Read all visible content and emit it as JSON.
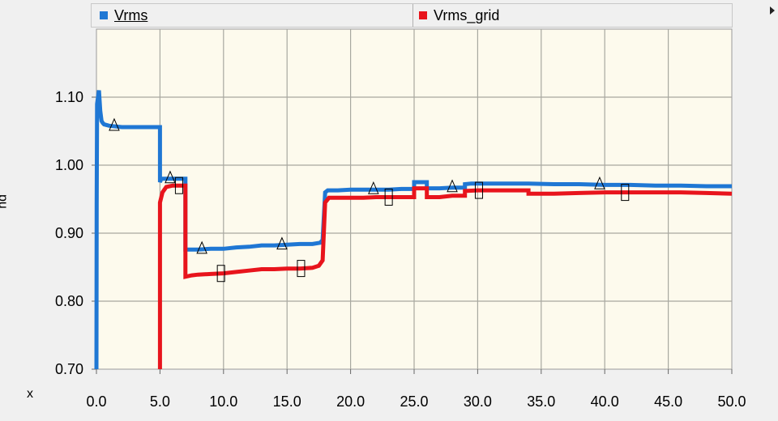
{
  "legend": {
    "items": [
      {
        "label": "Vrms",
        "color": "#1f77d4"
      },
      {
        "label": "Vrms_grid",
        "color": "#e8141c"
      }
    ]
  },
  "axes": {
    "ylabel": "pu",
    "xlabel": "x"
  },
  "chart_data": {
    "type": "line",
    "title": "",
    "xlabel": "x",
    "ylabel": "pu",
    "xlim": [
      0,
      50
    ],
    "ylim": [
      0.7,
      1.2
    ],
    "xticks": [
      0,
      5,
      10,
      15,
      20,
      25,
      30,
      35,
      40,
      45,
      50
    ],
    "xtick_labels": [
      "0.0",
      "5.0",
      "10.0",
      "15.0",
      "20.0",
      "25.0",
      "30.0",
      "35.0",
      "40.0",
      "45.0",
      "50.0"
    ],
    "yticks": [
      0.7,
      0.8,
      0.9,
      1.0,
      1.1
    ],
    "ytick_labels": [
      "0.70",
      "0.80",
      "0.90",
      "1.00",
      "1.10"
    ],
    "grid": true,
    "legend": "top",
    "plot_background": "#fdfaed",
    "series": [
      {
        "name": "Vrms",
        "color": "#1f77d4",
        "marker": "triangle",
        "marker_x": [
          1.4,
          5.8,
          8.3,
          14.6,
          21.8,
          28.0,
          39.6
        ],
        "x": [
          0,
          0.02,
          0.05,
          0.2,
          0.3,
          0.4,
          0.5,
          0.6,
          1.0,
          2.0,
          3.0,
          4.0,
          5.0,
          5.0,
          5.1,
          5.5,
          6.0,
          6.5,
          7.0,
          7.0,
          7.3,
          8.0,
          9.0,
          10.0,
          11.0,
          12.0,
          13.0,
          14.0,
          15.0,
          16.0,
          17.0,
          17.6,
          17.8,
          18.0,
          18.2,
          19.0,
          20.0,
          21.0,
          22.0,
          23.0,
          24.0,
          25.0,
          25.0,
          25.5,
          26.0,
          26.0,
          27.0,
          28.0,
          29.0,
          29.0,
          29.5,
          30.0,
          32.0,
          34.0,
          36.0,
          38.0,
          40.0,
          42.0,
          44.0,
          46.0,
          48.0,
          50.0
        ],
        "y": [
          0.7,
          0.945,
          1.09,
          1.11,
          1.08,
          1.065,
          1.062,
          1.06,
          1.058,
          1.056,
          1.056,
          1.056,
          1.056,
          0.975,
          0.98,
          0.98,
          0.98,
          0.98,
          0.98,
          0.876,
          0.876,
          0.876,
          0.877,
          0.877,
          0.879,
          0.88,
          0.882,
          0.882,
          0.883,
          0.884,
          0.884,
          0.886,
          0.89,
          0.96,
          0.963,
          0.963,
          0.964,
          0.964,
          0.964,
          0.964,
          0.965,
          0.965,
          0.975,
          0.975,
          0.975,
          0.966,
          0.966,
          0.967,
          0.967,
          0.972,
          0.973,
          0.973,
          0.973,
          0.973,
          0.972,
          0.972,
          0.971,
          0.971,
          0.97,
          0.97,
          0.969,
          0.969
        ]
      },
      {
        "name": "Vrms_grid",
        "color": "#e8141c",
        "marker": "square",
        "marker_x": [
          6.5,
          9.8,
          16.1,
          23.0,
          30.1,
          41.6
        ],
        "x": [
          5.0,
          5.0,
          5.2,
          5.5,
          6.0,
          6.5,
          7.0,
          7.0,
          7.5,
          8.0,
          9.0,
          10.0,
          11.0,
          12.0,
          13.0,
          14.0,
          15.0,
          16.0,
          17.0,
          17.5,
          17.8,
          18.0,
          18.3,
          19.0,
          20.0,
          21.0,
          22.0,
          23.0,
          24.0,
          25.0,
          25.0,
          25.5,
          26.0,
          26.0,
          27.0,
          28.0,
          29.0,
          29.0,
          30.0,
          32.0,
          34.0,
          34.0,
          36.0,
          38.0,
          40.0,
          42.0,
          44.0,
          46.0,
          48.0,
          50.0
        ],
        "y": [
          0.7,
          0.945,
          0.96,
          0.968,
          0.97,
          0.97,
          0.97,
          0.836,
          0.838,
          0.839,
          0.84,
          0.841,
          0.843,
          0.845,
          0.847,
          0.847,
          0.848,
          0.848,
          0.849,
          0.852,
          0.86,
          0.945,
          0.952,
          0.952,
          0.952,
          0.952,
          0.953,
          0.953,
          0.953,
          0.953,
          0.966,
          0.966,
          0.966,
          0.953,
          0.953,
          0.955,
          0.955,
          0.962,
          0.963,
          0.963,
          0.963,
          0.958,
          0.958,
          0.959,
          0.96,
          0.96,
          0.96,
          0.96,
          0.959,
          0.958
        ]
      }
    ]
  }
}
